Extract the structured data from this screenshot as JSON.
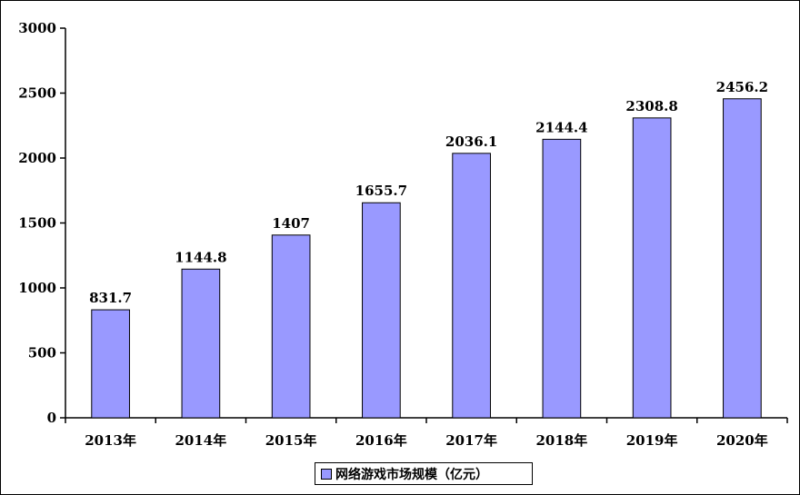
{
  "chart_data": {
    "type": "bar",
    "categories": [
      "2013年",
      "2014年",
      "2015年",
      "2016年",
      "2017年",
      "2018年",
      "2019年",
      "2020年"
    ],
    "series": [
      {
        "name": "网络游戏市场规模（亿元）",
        "values": [
          831.7,
          1144.8,
          1407,
          1655.7,
          2036.1,
          2144.4,
          2308.8,
          2456.2
        ],
        "value_labels": [
          "831.7",
          "1144.8",
          "1407",
          "1655.7",
          "2036.1",
          "2144.4",
          "2308.8",
          "2456.2"
        ]
      }
    ],
    "title": "",
    "xlabel": "",
    "ylabel": "",
    "ylim": [
      0,
      3000
    ],
    "yticks": [
      0,
      500,
      1000,
      1500,
      2000,
      2500,
      3000
    ],
    "grid": false,
    "legend_position": "bottom",
    "bar_color": "#9999ff",
    "bar_border_color": "#000000"
  }
}
